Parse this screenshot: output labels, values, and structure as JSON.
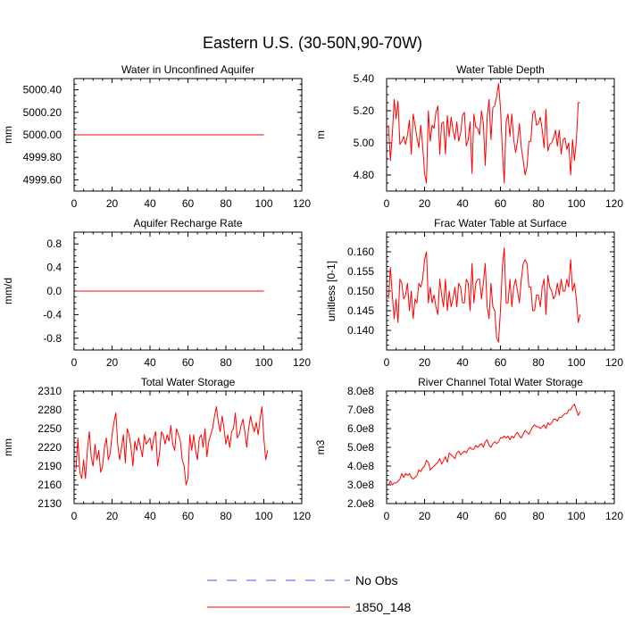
{
  "main_title": "Eastern U.S. (30-50N,90-70W)",
  "colors": {
    "series_line": "#ff0000",
    "obs_line": "#5050ff",
    "axis": "#000000",
    "background": "#ffffff"
  },
  "legend": {
    "entries": [
      {
        "label": "No Obs",
        "style": "dashed",
        "color": "#5050ff"
      },
      {
        "label": "1850_148",
        "style": "solid",
        "color": "#ff0000"
      }
    ]
  },
  "chart_data": [
    {
      "type": "line",
      "title": "Water in Unconfined Aquifer",
      "xlabel": "",
      "ylabel": "mm",
      "xlim": [
        0,
        120
      ],
      "ylim": [
        4999.5,
        5000.5
      ],
      "xticks": [
        0,
        20,
        40,
        60,
        80,
        100,
        120
      ],
      "xtick_labels": [
        "0",
        "20",
        "40",
        "60",
        "80",
        "100",
        "120"
      ],
      "yticks": [
        4999.6,
        4999.8,
        5000.0,
        5000.2,
        5000.4
      ],
      "ytick_labels": [
        "4999.60",
        "4999.80",
        "5000.00",
        "5000.20",
        "5000.40"
      ],
      "series": [
        {
          "name": "1850_148",
          "start_x": 1,
          "values": [
            5000,
            5000,
            5000,
            5000,
            5000,
            5000,
            5000,
            5000,
            5000,
            5000,
            5000,
            5000,
            5000,
            5000,
            5000,
            5000,
            5000,
            5000,
            5000,
            5000,
            5000,
            5000,
            5000,
            5000,
            5000,
            5000,
            5000,
            5000,
            5000,
            5000,
            5000,
            5000,
            5000,
            5000,
            5000,
            5000,
            5000,
            5000,
            5000,
            5000,
            5000,
            5000,
            5000,
            5000,
            5000,
            5000,
            5000,
            5000,
            5000,
            5000,
            5000,
            5000,
            5000,
            5000,
            5000,
            5000,
            5000,
            5000,
            5000,
            5000,
            5000,
            5000,
            5000,
            5000,
            5000,
            5000,
            5000,
            5000,
            5000,
            5000,
            5000,
            5000,
            5000,
            5000,
            5000,
            5000,
            5000,
            5000,
            5000,
            5000,
            5000,
            5000,
            5000,
            5000,
            5000,
            5000,
            5000,
            5000,
            5000,
            5000,
            5000,
            5000,
            5000,
            5000,
            5000,
            5000,
            5000,
            5000,
            5000,
            5000
          ]
        }
      ]
    },
    {
      "type": "line",
      "title": "Water Table Depth",
      "xlabel": "",
      "ylabel": "m",
      "xlim": [
        0,
        120
      ],
      "ylim": [
        4.7,
        5.4
      ],
      "xticks": [
        0,
        20,
        40,
        60,
        80,
        100,
        120
      ],
      "xtick_labels": [
        "0",
        "20",
        "40",
        "60",
        "80",
        "100",
        "120"
      ],
      "yticks": [
        4.8,
        5.0,
        5.2,
        5.4
      ],
      "ytick_labels": [
        "4.80",
        "5.00",
        "5.20",
        "5.40"
      ],
      "series": [
        {
          "name": "1850_148",
          "start_x": 1,
          "values": [
            5.11,
            4.89,
            5.05,
            5.27,
            5.15,
            5.26,
            4.99,
            5.01,
            5.04,
            4.99,
            5.05,
            5.14,
            4.93,
            5.18,
            5.11,
            5.03,
            4.97,
            5.11,
            4.98,
            4.81,
            4.75,
            5.2,
            5.01,
            5.11,
            5.09,
            5.19,
            5.23,
            4.93,
            5.12,
            5.13,
            4.93,
            5.17,
            5.04,
            5.16,
            5.08,
            5.02,
            5.13,
            5.01,
            5.06,
            5.17,
            5.19,
            4.98,
            5.02,
            5.13,
            4.81,
            5.18,
            5.1,
            5.09,
            5.05,
            5.2,
            5.12,
            4.86,
            5.16,
            5.27,
            5.02,
            5.22,
            5.23,
            5.29,
            5.37,
            5.22,
            4.96,
            4.75,
            5.13,
            5.18,
            5.04,
            5.18,
            5.02,
            4.94,
            5.01,
            5.12,
            4.97,
            4.89,
            4.8,
            4.85,
            5.01,
            5.01,
            5.18,
            5.2,
            5.11,
            5.12,
            5.16,
            5.08,
            4.97,
            5.21,
            4.95,
            4.99,
            5.0,
            5.03,
            5.08,
            4.98,
            5.08,
            4.93,
            5.02,
            5.03,
            4.96,
            5.0,
            4.8,
            5.02,
            4.89,
            5.01,
            5.25,
            5.25
          ]
        }
      ]
    },
    {
      "type": "line",
      "title": "Aquifer Recharge Rate",
      "xlabel": "",
      "ylabel": "mm/d",
      "xlim": [
        0,
        120
      ],
      "ylim": [
        -1.0,
        1.0
      ],
      "xticks": [
        0,
        20,
        40,
        60,
        80,
        100,
        120
      ],
      "xtick_labels": [
        "0",
        "20",
        "40",
        "60",
        "80",
        "100",
        "120"
      ],
      "yticks": [
        -0.8,
        -0.4,
        0.0,
        0.4,
        0.8
      ],
      "ytick_labels": [
        "-0.8",
        "-0.4",
        "0.0",
        "0.4",
        "0.8"
      ],
      "series": [
        {
          "name": "1850_148",
          "start_x": 1,
          "values": [
            0,
            0,
            0,
            0,
            0,
            0,
            0,
            0,
            0,
            0,
            0,
            0,
            0,
            0,
            0,
            0,
            0,
            0,
            0,
            0,
            0,
            0,
            0,
            0,
            0,
            0,
            0,
            0,
            0,
            0,
            0,
            0,
            0,
            0,
            0,
            0,
            0,
            0,
            0,
            0,
            0,
            0,
            0,
            0,
            0,
            0,
            0,
            0,
            0,
            0,
            0,
            0,
            0,
            0,
            0,
            0,
            0,
            0,
            0,
            0,
            0,
            0,
            0,
            0,
            0,
            0,
            0,
            0,
            0,
            0,
            0,
            0,
            0,
            0,
            0,
            0,
            0,
            0,
            0,
            0,
            0,
            0,
            0,
            0,
            0,
            0,
            0,
            0,
            0,
            0,
            0,
            0,
            0,
            0,
            0,
            0,
            0,
            0,
            0,
            0
          ]
        }
      ]
    },
    {
      "type": "line",
      "title": "Frac Water Table at Surface",
      "xlabel": "",
      "ylabel": "unitless [0-1]",
      "xlim": [
        0,
        120
      ],
      "ylim": [
        0.135,
        0.165
      ],
      "xticks": [
        0,
        20,
        40,
        60,
        80,
        100,
        120
      ],
      "xtick_labels": [
        "0",
        "20",
        "40",
        "60",
        "80",
        "100",
        "120"
      ],
      "yticks": [
        0.14,
        0.145,
        0.15,
        0.155,
        0.16
      ],
      "ytick_labels": [
        "0.140",
        "0.145",
        "0.150",
        "0.155",
        "0.160"
      ],
      "series": [
        {
          "name": "1850_148",
          "start_x": 1,
          "values": [
            0.148,
            0.156,
            0.149,
            0.143,
            0.148,
            0.142,
            0.153,
            0.152,
            0.148,
            0.149,
            0.152,
            0.145,
            0.15,
            0.143,
            0.148,
            0.147,
            0.152,
            0.151,
            0.153,
            0.158,
            0.16,
            0.147,
            0.151,
            0.147,
            0.149,
            0.146,
            0.144,
            0.153,
            0.149,
            0.146,
            0.153,
            0.145,
            0.15,
            0.146,
            0.148,
            0.151,
            0.146,
            0.152,
            0.151,
            0.147,
            0.147,
            0.153,
            0.152,
            0.145,
            0.157,
            0.147,
            0.152,
            0.153,
            0.153,
            0.148,
            0.152,
            0.157,
            0.146,
            0.143,
            0.152,
            0.146,
            0.145,
            0.138,
            0.137,
            0.145,
            0.156,
            0.161,
            0.147,
            0.147,
            0.153,
            0.146,
            0.151,
            0.153,
            0.15,
            0.147,
            0.153,
            0.157,
            0.158,
            0.157,
            0.151,
            0.151,
            0.145,
            0.145,
            0.149,
            0.149,
            0.146,
            0.151,
            0.153,
            0.144,
            0.154,
            0.151,
            0.15,
            0.148,
            0.149,
            0.152,
            0.149,
            0.153,
            0.15,
            0.15,
            0.153,
            0.151,
            0.158,
            0.15,
            0.152,
            0.148,
            0.142,
            0.144
          ]
        }
      ]
    },
    {
      "type": "line",
      "title": "Total Water Storage",
      "xlabel": "",
      "ylabel": "mm",
      "xlim": [
        0,
        120
      ],
      "ylim": [
        2130,
        2310
      ],
      "xticks": [
        0,
        20,
        40,
        60,
        80,
        100,
        120
      ],
      "xtick_labels": [
        "0",
        "20",
        "40",
        "60",
        "80",
        "100",
        "120"
      ],
      "yticks": [
        2130,
        2160,
        2190,
        2220,
        2250,
        2280,
        2310
      ],
      "ytick_labels": [
        "2130",
        "2160",
        "2190",
        "2220",
        "2250",
        "2280",
        "2310"
      ],
      "series": [
        {
          "name": "1850_148",
          "start_x": 1,
          "values": [
            2185,
            2235,
            2180,
            2170,
            2200,
            2170,
            2215,
            2245,
            2205,
            2190,
            2225,
            2200,
            2215,
            2180,
            2190,
            2220,
            2235,
            2200,
            2210,
            2240,
            2260,
            2275,
            2225,
            2200,
            2220,
            2240,
            2195,
            2250,
            2240,
            2220,
            2190,
            2230,
            2215,
            2235,
            2220,
            2205,
            2240,
            2225,
            2230,
            2235,
            2215,
            2235,
            2245,
            2190,
            2210,
            2245,
            2240,
            2225,
            2240,
            2230,
            2255,
            2225,
            2215,
            2250,
            2240,
            2230,
            2200,
            2190,
            2160,
            2170,
            2240,
            2215,
            2240,
            2215,
            2200,
            2235,
            2240,
            2220,
            2250,
            2205,
            2230,
            2240,
            2250,
            2270,
            2285,
            2260,
            2245,
            2270,
            2250,
            2225,
            2240,
            2220,
            2245,
            2250,
            2275,
            2235,
            2240,
            2255,
            2265,
            2245,
            2220,
            2250,
            2270,
            2255,
            2245,
            2260,
            2240,
            2265,
            2285,
            2235,
            2200,
            2215
          ]
        }
      ]
    },
    {
      "type": "line",
      "title": "River Channel Total Water Storage",
      "xlabel": "",
      "ylabel": "m3",
      "xlim": [
        0,
        120
      ],
      "ylim": [
        200000000.0,
        800000000.0
      ],
      "xticks": [
        0,
        20,
        40,
        60,
        80,
        100,
        120
      ],
      "xtick_labels": [
        "0",
        "20",
        "40",
        "60",
        "80",
        "100",
        "120"
      ],
      "yticks": [
        200000000.0,
        300000000.0,
        400000000.0,
        500000000.0,
        600000000.0,
        700000000.0,
        800000000.0
      ],
      "ytick_labels": [
        "2.0e8",
        "3.0e8",
        "4.0e8",
        "5.0e8",
        "6.0e8",
        "7.0e8",
        "8.0e8"
      ],
      "series": [
        {
          "name": "1850_148",
          "start_x": 1,
          "values": [
            300000000.0,
            320000000.0,
            300000000.0,
            310000000.0,
            310000000.0,
            320000000.0,
            330000000.0,
            360000000.0,
            340000000.0,
            360000000.0,
            350000000.0,
            360000000.0,
            340000000.0,
            330000000.0,
            340000000.0,
            350000000.0,
            380000000.0,
            370000000.0,
            390000000.0,
            400000000.0,
            430000000.0,
            420000000.0,
            380000000.0,
            390000000.0,
            400000000.0,
            410000000.0,
            420000000.0,
            440000000.0,
            410000000.0,
            430000000.0,
            450000000.0,
            420000000.0,
            470000000.0,
            460000000.0,
            450000000.0,
            440000000.0,
            470000000.0,
            480000000.0,
            460000000.0,
            470000000.0,
            480000000.0,
            470000000.0,
            490000000.0,
            500000000.0,
            490000000.0,
            490000000.0,
            510000000.0,
            500000000.0,
            510000000.0,
            520000000.0,
            500000000.0,
            530000000.0,
            540000000.0,
            510000000.0,
            500000000.0,
            520000000.0,
            530000000.0,
            520000000.0,
            530000000.0,
            550000000.0,
            550000000.0,
            560000000.0,
            550000000.0,
            560000000.0,
            540000000.0,
            560000000.0,
            550000000.0,
            570000000.0,
            580000000.0,
            560000000.0,
            550000000.0,
            570000000.0,
            590000000.0,
            580000000.0,
            570000000.0,
            590000000.0,
            610000000.0,
            620000000.0,
            610000000.0,
            610000000.0,
            600000000.0,
            610000000.0,
            620000000.0,
            600000000.0,
            630000000.0,
            620000000.0,
            630000000.0,
            650000000.0,
            650000000.0,
            640000000.0,
            660000000.0,
            660000000.0,
            670000000.0,
            680000000.0,
            680000000.0,
            700000000.0,
            700000000.0,
            720000000.0,
            730000000.0,
            700000000.0,
            670000000.0,
            690000000.0
          ]
        }
      ]
    }
  ]
}
